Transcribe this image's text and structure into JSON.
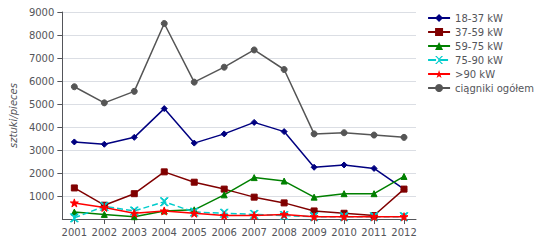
{
  "chart_data": {
    "type": "line",
    "x": [
      2001,
      2002,
      2003,
      2004,
      2005,
      2006,
      2007,
      2008,
      2009,
      2010,
      2011,
      2012
    ],
    "series": [
      {
        "name": "18-37 kW",
        "color": "#000080",
        "marker": "diamond",
        "line_style": "solid",
        "values": [
          3350,
          3250,
          3550,
          4800,
          3300,
          3700,
          4200,
          3800,
          2250,
          2350,
          2200,
          1300
        ]
      },
      {
        "name": "37-59 kW",
        "color": "#800000",
        "marker": "square",
        "line_style": "solid",
        "values": [
          1350,
          600,
          1100,
          2050,
          1600,
          1300,
          950,
          700,
          350,
          250,
          150,
          1300
        ]
      },
      {
        "name": "59-75 kW",
        "color": "#008000",
        "marker": "triangle",
        "line_style": "solid",
        "values": [
          300,
          200,
          100,
          350,
          400,
          1050,
          1800,
          1650,
          950,
          1100,
          1100,
          1850
        ]
      },
      {
        "name": "75-90 kW",
        "color": "#00CCCC",
        "marker": "x",
        "line_style": "dashed",
        "values": [
          50,
          550,
          350,
          750,
          300,
          250,
          200,
          150,
          100,
          100,
          100,
          100
        ]
      },
      {
        "name": ">90 kW",
        "color": "#FF0000",
        "marker": "star",
        "line_style": "solid",
        "values": [
          700,
          500,
          250,
          350,
          250,
          150,
          150,
          200,
          100,
          100,
          100,
          100
        ]
      },
      {
        "name": "ciągniki ogółem",
        "color": "#555555",
        "marker": "circle",
        "line_style": "solid",
        "values": [
          5750,
          5050,
          5550,
          8500,
          5950,
          6600,
          7350,
          6500,
          3700,
          3750,
          3650,
          3550
        ]
      }
    ],
    "ylabel": "sztuki/pieces",
    "xlim": [
      2000.6,
      2012.4
    ],
    "xticks": [
      2001,
      2002,
      2003,
      2004,
      2005,
      2006,
      2007,
      2008,
      2009,
      2010,
      2011,
      2012
    ],
    "ylim": [
      0,
      9000
    ],
    "yticks": [
      1000,
      2000,
      3000,
      4000,
      5000,
      6000,
      7000,
      8000,
      9000
    ],
    "grid": true,
    "legend": "upper right"
  }
}
